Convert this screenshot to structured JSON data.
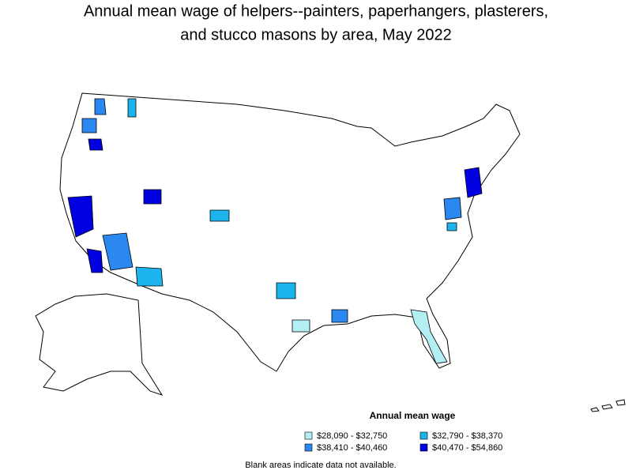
{
  "title": [
    "Annual mean wage of helpers--painters, paperhangers, plasterers,",
    "and stucco masons by area, May 2022"
  ],
  "legend": {
    "title": "Annual mean wage",
    "items": [
      {
        "label": "$28,090 - $32,750",
        "color": "#b3eef2"
      },
      {
        "label": "$32,790 - $38,370",
        "color": "#1cb4ec"
      },
      {
        "label": "$38,410 - $40,460",
        "color": "#2a88f0"
      },
      {
        "label": "$40,470 - $54,860",
        "color": "#0000e0"
      }
    ]
  },
  "note": "Blank areas indicate data not available."
}
